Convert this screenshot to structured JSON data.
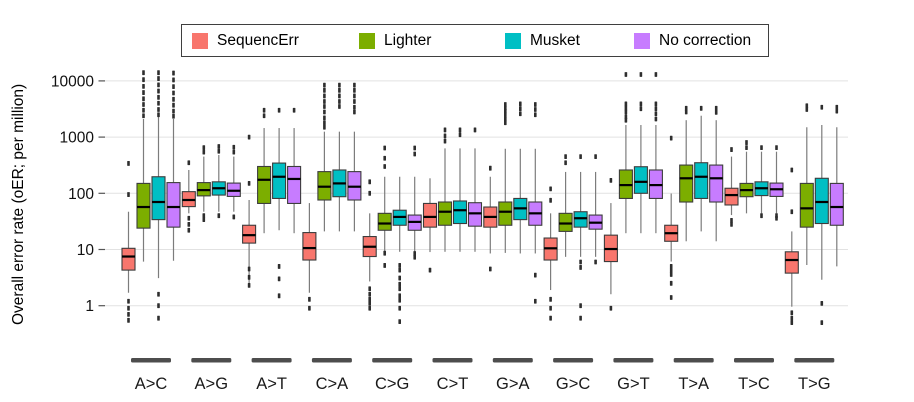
{
  "legend": {
    "items": [
      {
        "label": "SequencErr",
        "color": "#F8766D"
      },
      {
        "label": "Lighter",
        "color": "#7CAE00"
      },
      {
        "label": "Musket",
        "color": "#00BFC4"
      },
      {
        "label": "No correction",
        "color": "#C77CFF"
      }
    ]
  },
  "chart_data": {
    "type": "boxplot",
    "title": "",
    "ylabel": "Overall error rate (oER; per million)",
    "xlabel": "",
    "y_scale": "log10",
    "ylim": [
      0.4,
      20000
    ],
    "yticks": [
      10000,
      1000,
      100,
      10,
      1
    ],
    "grid": "horizontal-major-only",
    "legend_position": "top",
    "box_stats_order": [
      "whisker_low",
      "q1",
      "median",
      "q3",
      "whisker_high"
    ],
    "categories": [
      "A>C",
      "A>G",
      "A>T",
      "C>A",
      "C>G",
      "C>T",
      "G>A",
      "G>C",
      "G>T",
      "T>A",
      "T>C",
      "T>G"
    ],
    "series": [
      {
        "name": "SequencErr",
        "color": "#F8766D",
        "boxes": [
          [
            1.7,
            4.3,
            7.5,
            10.5,
            47
          ],
          [
            44,
            58,
            76,
            107,
            260
          ],
          [
            2.5,
            13,
            18,
            27,
            76
          ],
          [
            1.7,
            6.5,
            10.6,
            20,
            67
          ],
          [
            2.7,
            7.5,
            11.2,
            17,
            44
          ],
          [
            9,
            25,
            38,
            66,
            185
          ],
          [
            8.5,
            25,
            38,
            57,
            197
          ],
          [
            1.9,
            6.5,
            10.5,
            16,
            44
          ],
          [
            1.6,
            6.1,
            10.2,
            18,
            67
          ],
          [
            6.1,
            14,
            19.5,
            27,
            99
          ],
          [
            41,
            62,
            93,
            123,
            450
          ],
          [
            0.96,
            3.8,
            6.5,
            9.1,
            21
          ]
        ],
        "outliers": [
          [
            340,
            95,
            1.2,
            0.9,
            0.7,
            0.55
          ],
          [
            350,
            36,
            28,
            22
          ],
          [
            1000,
            150,
            4.5,
            3.2,
            2.3
          ],
          [
            1.3,
            0.9
          ],
          [
            160,
            100,
            2.0,
            1.6,
            1.3,
            1.1,
            0.9
          ],
          [
            4.3
          ],
          [
            280,
            4.5
          ],
          [
            120,
            75,
            1.3,
            0.9,
            0.6
          ],
          [
            170,
            0.9
          ],
          [
            960,
            5,
            4.2,
            3.6,
            2.5,
            1.4
          ],
          [
            600,
            33,
            28
          ],
          [
            260,
            47,
            0.75,
            0.6,
            0.5
          ]
        ]
      },
      {
        "name": "Lighter",
        "color": "#7CAE00",
        "boxes": [
          [
            6.1,
            24,
            57,
            150,
            2100
          ],
          [
            47,
            90,
            114,
            155,
            450
          ],
          [
            19.5,
            66,
            174,
            300,
            1450
          ],
          [
            21,
            76,
            131,
            243,
            1250
          ],
          [
            9.1,
            22,
            29,
            44,
            197
          ],
          [
            9.1,
            27,
            47,
            70,
            630
          ],
          [
            8.7,
            27,
            47,
            70,
            620
          ],
          [
            7.4,
            21,
            29,
            44,
            240
          ],
          [
            19.5,
            81,
            140,
            260,
            1640
          ],
          [
            14,
            70,
            185,
            318,
            2000
          ],
          [
            44,
            87,
            114,
            150,
            550
          ],
          [
            5.3,
            25,
            54,
            150,
            1500
          ]
        ],
        "outliers": [
          [
            14000,
            10500,
            8000,
            6200,
            4800,
            3800,
            3000,
            2400
          ],
          [
            650,
            540,
            40,
            34
          ],
          [
            3000,
            2400
          ],
          [
            8400,
            6800,
            5400,
            4300,
            3500,
            2800,
            2200,
            1800,
            1500
          ],
          [
            640,
            420,
            300,
            8.6,
            5.2
          ],
          [
            1340,
            1050,
            850
          ],
          [
            3800,
            3300,
            2900,
            2500,
            2100,
            1800
          ],
          [
            450,
            350
          ],
          [
            13000,
            3900,
            3300,
            2800,
            2300,
            2000
          ],
          [
            3250,
            2800
          ],
          [
            800,
            650
          ],
          [
            3600,
            3100
          ]
        ]
      },
      {
        "name": "Musket",
        "color": "#00BFC4",
        "boxes": [
          [
            3.1,
            34,
            70,
            197,
            2300
          ],
          [
            47,
            93,
            123,
            160,
            480
          ],
          [
            22,
            81,
            197,
            345,
            1450
          ],
          [
            21,
            87,
            150,
            260,
            1250
          ],
          [
            9.1,
            27,
            38,
            50,
            197
          ],
          [
            9.1,
            29,
            50,
            73,
            630
          ],
          [
            8.5,
            34,
            54,
            81,
            620
          ],
          [
            7.4,
            25,
            36,
            47,
            240
          ],
          [
            19.5,
            100,
            160,
            297,
            1640
          ],
          [
            21,
            81,
            197,
            350,
            2400
          ],
          [
            44,
            91,
            123,
            160,
            550
          ],
          [
            2.9,
            29,
            70,
            185,
            1640
          ]
        ],
        "outliers": [
          [
            14000,
            11000,
            8500,
            6600,
            5100,
            4000,
            3100,
            2500,
            1.6,
            1.0,
            0.6
          ],
          [
            680,
            560,
            40
          ],
          [
            3000,
            5,
            3,
            1.5
          ],
          [
            8400,
            6800,
            5400,
            4300,
            3500
          ],
          [
            5.2,
            4.3,
            3.1,
            2.4,
            2.0,
            1.5,
            1.25,
            0.9,
            0.52
          ],
          [
            1340,
            1100
          ],
          [
            3900,
            3200,
            2600
          ],
          [
            450,
            6,
            4.8,
            1.0,
            0.6
          ],
          [
            13000,
            3900,
            3200
          ],
          [
            3250
          ],
          [
            650,
            40
          ],
          [
            3400,
            1.1,
            0.5
          ]
        ]
      },
      {
        "name": "No correction",
        "color": "#C77CFF",
        "boxes": [
          [
            6.3,
            25,
            57,
            155,
            2100
          ],
          [
            47,
            88,
            111,
            152,
            450
          ],
          [
            19.5,
            66,
            180,
            300,
            1450
          ],
          [
            21,
            76,
            131,
            243,
            1250
          ],
          [
            9.1,
            22,
            31,
            41,
            197
          ],
          [
            9.1,
            26,
            44,
            68,
            630
          ],
          [
            8.5,
            27,
            44,
            70,
            620
          ],
          [
            7.4,
            23,
            30,
            41,
            240
          ],
          [
            19.5,
            81,
            140,
            260,
            1640
          ],
          [
            14,
            70,
            185,
            318,
            2000
          ],
          [
            44,
            88,
            118,
            152,
            550
          ],
          [
            5.0,
            27,
            57,
            150,
            1500
          ]
        ],
        "outliers": [
          [
            13800,
            10400,
            7900,
            6100,
            4700,
            3700,
            2900,
            2350
          ],
          [
            660,
            540,
            38
          ],
          [
            3000
          ],
          [
            8400,
            6800,
            5400,
            4300,
            3400,
            2800
          ],
          [
            640,
            500,
            8.5,
            7.3
          ],
          [
            1340
          ],
          [
            3800,
            3100,
            2500,
            3.5,
            1.2
          ],
          [
            450,
            6
          ],
          [
            13000,
            3900,
            3200,
            2600,
            2100
          ],
          [
            3250,
            2750
          ],
          [
            650,
            40,
            36
          ],
          [
            3400,
            2900
          ]
        ]
      }
    ]
  }
}
